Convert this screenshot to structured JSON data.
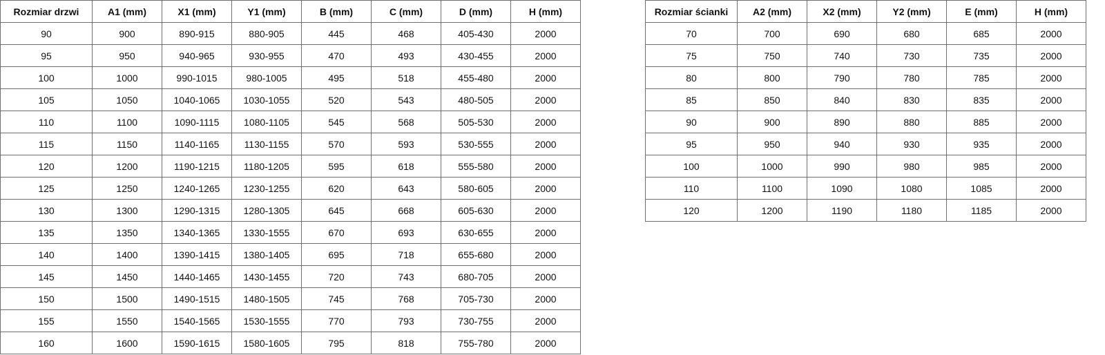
{
  "doors_table": {
    "headers": [
      "Rozmiar drzwi",
      "A1 (mm)",
      "X1 (mm)",
      "Y1 (mm)",
      "B (mm)",
      "C (mm)",
      "D (mm)",
      "H (mm)"
    ],
    "rows": [
      [
        "90",
        "900",
        "890-915",
        "880-905",
        "445",
        "468",
        "405-430",
        "2000"
      ],
      [
        "95",
        "950",
        "940-965",
        "930-955",
        "470",
        "493",
        "430-455",
        "2000"
      ],
      [
        "100",
        "1000",
        "990-1015",
        "980-1005",
        "495",
        "518",
        "455-480",
        "2000"
      ],
      [
        "105",
        "1050",
        "1040-1065",
        "1030-1055",
        "520",
        "543",
        "480-505",
        "2000"
      ],
      [
        "110",
        "1100",
        "1090-1115",
        "1080-1105",
        "545",
        "568",
        "505-530",
        "2000"
      ],
      [
        "115",
        "1150",
        "1140-1165",
        "1130-1155",
        "570",
        "593",
        "530-555",
        "2000"
      ],
      [
        "120",
        "1200",
        "1190-1215",
        "1180-1205",
        "595",
        "618",
        "555-580",
        "2000"
      ],
      [
        "125",
        "1250",
        "1240-1265",
        "1230-1255",
        "620",
        "643",
        "580-605",
        "2000"
      ],
      [
        "130",
        "1300",
        "1290-1315",
        "1280-1305",
        "645",
        "668",
        "605-630",
        "2000"
      ],
      [
        "135",
        "1350",
        "1340-1365",
        "1330-1555",
        "670",
        "693",
        "630-655",
        "2000"
      ],
      [
        "140",
        "1400",
        "1390-1415",
        "1380-1405",
        "695",
        "718",
        "655-680",
        "2000"
      ],
      [
        "145",
        "1450",
        "1440-1465",
        "1430-1455",
        "720",
        "743",
        "680-705",
        "2000"
      ],
      [
        "150",
        "1500",
        "1490-1515",
        "1480-1505",
        "745",
        "768",
        "705-730",
        "2000"
      ],
      [
        "155",
        "1550",
        "1540-1565",
        "1530-1555",
        "770",
        "793",
        "730-755",
        "2000"
      ],
      [
        "160",
        "1600",
        "1590-1615",
        "1580-1605",
        "795",
        "818",
        "755-780",
        "2000"
      ]
    ]
  },
  "wall_table": {
    "headers": [
      "Rozmiar ścianki",
      "A2 (mm)",
      "X2 (mm)",
      "Y2 (mm)",
      "E (mm)",
      "H (mm)"
    ],
    "rows": [
      [
        "70",
        "700",
        "690",
        "680",
        "685",
        "2000"
      ],
      [
        "75",
        "750",
        "740",
        "730",
        "735",
        "2000"
      ],
      [
        "80",
        "800",
        "790",
        "780",
        "785",
        "2000"
      ],
      [
        "85",
        "850",
        "840",
        "830",
        "835",
        "2000"
      ],
      [
        "90",
        "900",
        "890",
        "880",
        "885",
        "2000"
      ],
      [
        "95",
        "950",
        "940",
        "930",
        "935",
        "2000"
      ],
      [
        "100",
        "1000",
        "990",
        "980",
        "985",
        "2000"
      ],
      [
        "110",
        "1100",
        "1090",
        "1080",
        "1085",
        "2000"
      ],
      [
        "120",
        "1200",
        "1190",
        "1180",
        "1185",
        "2000"
      ]
    ]
  }
}
